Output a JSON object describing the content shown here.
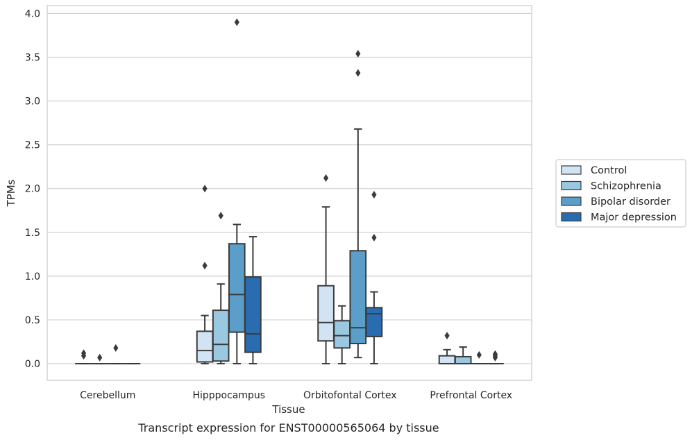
{
  "caption": "Transcript expression for ENST00000565064 by tissue",
  "chart_data": {
    "type": "box",
    "title": "",
    "xlabel": "Tissue",
    "ylabel": "TPMs",
    "ylim": [
      -0.19,
      4.09
    ],
    "yticks": [
      "0.0",
      "0.5",
      "1.0",
      "1.5",
      "2.0",
      "2.5",
      "3.0",
      "3.5",
      "4.0"
    ],
    "grid": "horizontal",
    "legend_position": "right",
    "categories": [
      "Cerebellum",
      "Hipppocampus",
      "Orbitofontal Cortex",
      "Prefrontal Cortex"
    ],
    "series": [
      {
        "name": "Control",
        "color": "#d2e3f3",
        "boxes": [
          {
            "category": "Cerebellum",
            "whisker_low": 0,
            "q1": 0,
            "median": 0,
            "q3": 0,
            "whisker_high": 0,
            "outliers": [
              0.09,
              0.12
            ]
          },
          {
            "category": "Hipppocampus",
            "whisker_low": 0,
            "q1": 0.02,
            "median": 0.15,
            "q3": 0.37,
            "whisker_high": 0.55,
            "outliers": [
              1.12,
              2.0
            ]
          },
          {
            "category": "Orbitofontal Cortex",
            "whisker_low": 0,
            "q1": 0.26,
            "median": 0.47,
            "q3": 0.89,
            "whisker_high": 1.79,
            "outliers": [
              2.12
            ]
          },
          {
            "category": "Prefrontal Cortex",
            "whisker_low": 0,
            "q1": 0,
            "median": 0,
            "q3": 0.09,
            "whisker_high": 0.16,
            "outliers": [
              0.32
            ]
          }
        ]
      },
      {
        "name": "Schizophrenia",
        "color": "#9ac8e0",
        "boxes": [
          {
            "category": "Cerebellum",
            "whisker_low": 0,
            "q1": 0,
            "median": 0,
            "q3": 0,
            "whisker_high": 0,
            "outliers": [
              0.07
            ]
          },
          {
            "category": "Hipppocampus",
            "whisker_low": 0,
            "q1": 0.03,
            "median": 0.22,
            "q3": 0.61,
            "whisker_high": 0.91,
            "outliers": [
              1.69
            ]
          },
          {
            "category": "Orbitofontal Cortex",
            "whisker_low": 0,
            "q1": 0.18,
            "median": 0.32,
            "q3": 0.49,
            "whisker_high": 0.66,
            "outliers": []
          },
          {
            "category": "Prefrontal Cortex",
            "whisker_low": 0,
            "q1": 0,
            "median": 0,
            "q3": 0.08,
            "whisker_high": 0.19,
            "outliers": []
          }
        ]
      },
      {
        "name": "Bipolar disorder",
        "color": "#5a9ec9",
        "boxes": [
          {
            "category": "Cerebellum",
            "whisker_low": 0,
            "q1": 0,
            "median": 0,
            "q3": 0,
            "whisker_high": 0,
            "outliers": [
              0.18
            ]
          },
          {
            "category": "Hipppocampus",
            "whisker_low": 0,
            "q1": 0.36,
            "median": 0.79,
            "q3": 1.37,
            "whisker_high": 1.59,
            "outliers": [
              3.9
            ]
          },
          {
            "category": "Orbitofontal Cortex",
            "whisker_low": 0.07,
            "q1": 0.23,
            "median": 0.41,
            "q3": 1.29,
            "whisker_high": 2.68,
            "outliers": [
              3.32,
              3.54
            ]
          },
          {
            "category": "Prefrontal Cortex",
            "whisker_low": 0,
            "q1": 0,
            "median": 0,
            "q3": 0,
            "whisker_high": 0,
            "outliers": [
              0.1
            ]
          }
        ]
      },
      {
        "name": "Major depression",
        "color": "#2a6cb0",
        "boxes": [
          {
            "category": "Cerebellum",
            "whisker_low": 0,
            "q1": 0,
            "median": 0,
            "q3": 0,
            "whisker_high": 0,
            "outliers": []
          },
          {
            "category": "Hipppocampus",
            "whisker_low": 0,
            "q1": 0.13,
            "median": 0.34,
            "q3": 0.99,
            "whisker_high": 1.45,
            "outliers": []
          },
          {
            "category": "Orbitofontal Cortex",
            "whisker_low": 0,
            "q1": 0.31,
            "median": 0.57,
            "q3": 0.64,
            "whisker_high": 0.82,
            "outliers": [
              1.44,
              1.93
            ]
          },
          {
            "category": "Prefrontal Cortex",
            "whisker_low": 0,
            "q1": 0,
            "median": 0,
            "q3": 0,
            "whisker_high": 0,
            "outliers": [
              0.07,
              0.09,
              0.11
            ]
          }
        ]
      }
    ]
  }
}
